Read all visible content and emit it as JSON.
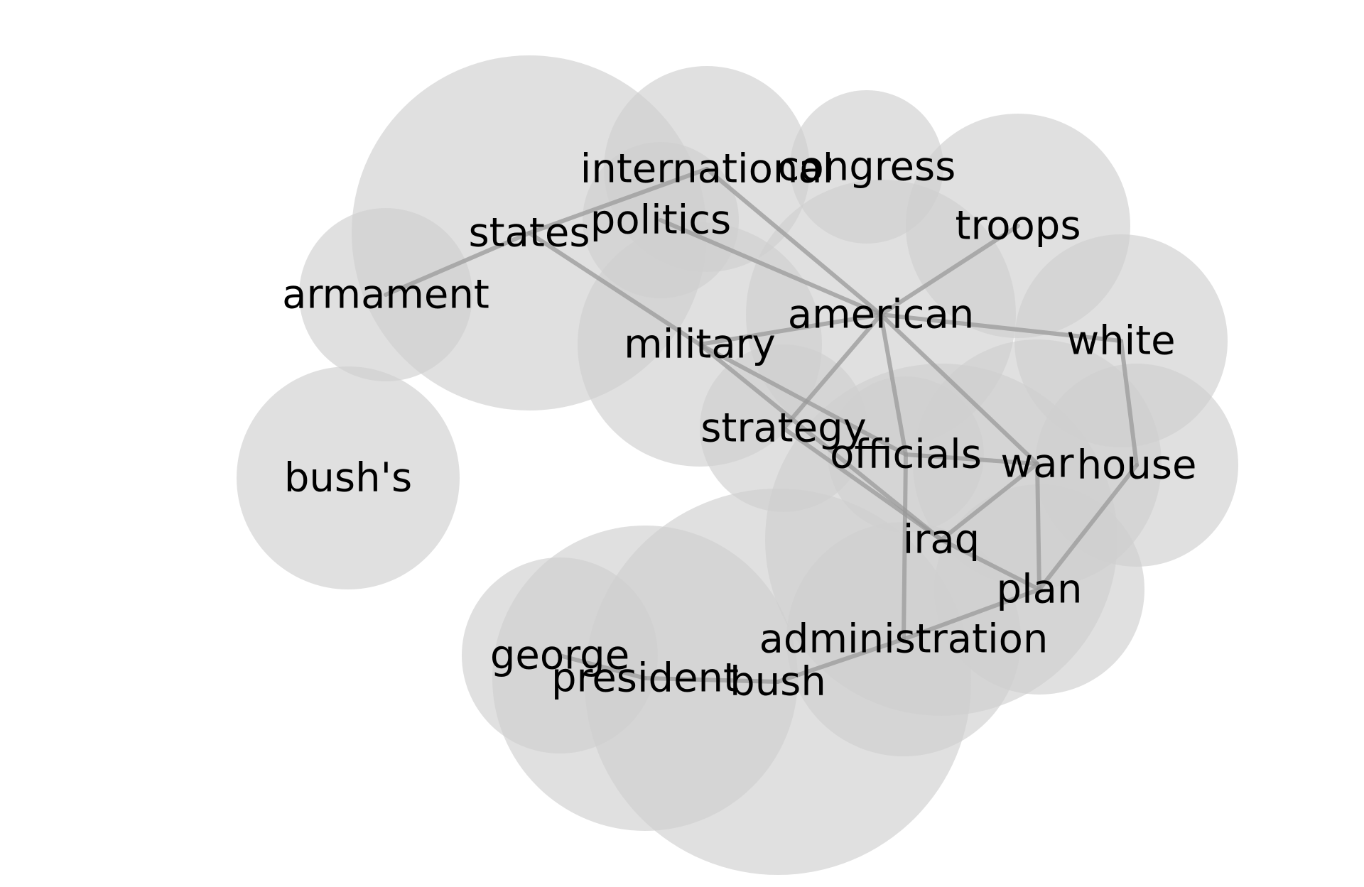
{
  "colors": {
    "background": "#ffffff",
    "node_fill": "#d0d0d0",
    "edge": "#9a9a9a",
    "label": "#000000"
  },
  "chart_data": {
    "type": "network",
    "nodes": [
      {
        "id": "states",
        "label": "states"
      },
      {
        "id": "international",
        "label": "international"
      },
      {
        "id": "congress",
        "label": "congress"
      },
      {
        "id": "politics",
        "label": "politics"
      },
      {
        "id": "troops",
        "label": "troops"
      },
      {
        "id": "armament",
        "label": "armament"
      },
      {
        "id": "american",
        "label": "american"
      },
      {
        "id": "military",
        "label": "military"
      },
      {
        "id": "white",
        "label": "white"
      },
      {
        "id": "strategy",
        "label": "strategy"
      },
      {
        "id": "officials",
        "label": "officials"
      },
      {
        "id": "war",
        "label": "war"
      },
      {
        "id": "house",
        "label": "house"
      },
      {
        "id": "bushs",
        "label": "bush's"
      },
      {
        "id": "iraq",
        "label": "iraq"
      },
      {
        "id": "plan",
        "label": "plan"
      },
      {
        "id": "administration",
        "label": "administration"
      },
      {
        "id": "george",
        "label": "george"
      },
      {
        "id": "president",
        "label": "president"
      },
      {
        "id": "bush",
        "label": "bush"
      }
    ],
    "edges": [
      [
        "armament",
        "states"
      ],
      [
        "states",
        "international"
      ],
      [
        "states",
        "military"
      ],
      [
        "international",
        "american"
      ],
      [
        "politics",
        "american"
      ],
      [
        "troops",
        "american"
      ],
      [
        "american",
        "military"
      ],
      [
        "american",
        "white"
      ],
      [
        "american",
        "strategy"
      ],
      [
        "american",
        "officials"
      ],
      [
        "american",
        "war"
      ],
      [
        "white",
        "house"
      ],
      [
        "military",
        "officials"
      ],
      [
        "military",
        "iraq"
      ],
      [
        "strategy",
        "iraq"
      ],
      [
        "officials",
        "war"
      ],
      [
        "officials",
        "administration"
      ],
      [
        "war",
        "iraq"
      ],
      [
        "war",
        "plan"
      ],
      [
        "house",
        "plan"
      ],
      [
        "iraq",
        "plan"
      ],
      [
        "plan",
        "administration"
      ],
      [
        "administration",
        "bush"
      ],
      [
        "george",
        "president"
      ],
      [
        "president",
        "bush"
      ]
    ]
  }
}
